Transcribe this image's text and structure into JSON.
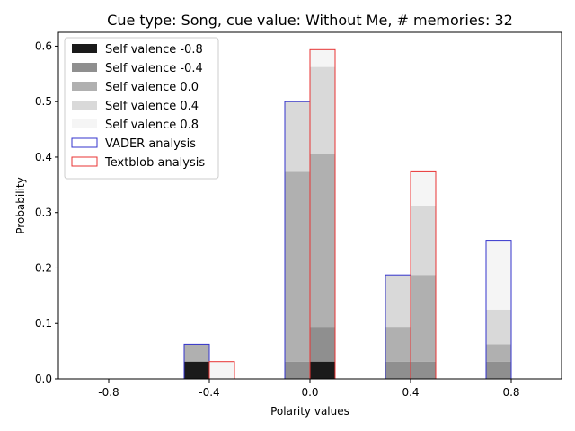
{
  "chart_data": {
    "type": "bar",
    "title": "Cue type: Song, cue value: Without Me, # memories: 32",
    "xlabel": "Polarity values",
    "ylabel": "Probability",
    "x_ticks": [
      "-0.8",
      "-0.4",
      "0.0",
      "0.4",
      "0.8"
    ],
    "y_ticks": [
      "0.0",
      "0.1",
      "0.2",
      "0.3",
      "0.4",
      "0.5",
      "0.6"
    ],
    "ylim": [
      0,
      0.625
    ],
    "xlim": [
      -1.0,
      1.0
    ],
    "categories": [
      -0.8,
      -0.4,
      0.0,
      0.4,
      0.8
    ],
    "bin_width": 0.1,
    "legend_position": "top-left",
    "grid": false,
    "series": [
      {
        "name": "VADER analysis",
        "offset": -0.05,
        "edge_color": "#3333cc",
        "stacks": [
          {
            "name": "Self valence -0.8",
            "color": "#1a1a1a",
            "values": [
              0,
              0.03125,
              0,
              0,
              0
            ]
          },
          {
            "name": "Self valence -0.4",
            "color": "#8f8f8f",
            "values": [
              0,
              0,
              0.03125,
              0.03125,
              0.03125
            ]
          },
          {
            "name": "Self valence 0.0",
            "color": "#b0b0b0",
            "values": [
              0,
              0.03125,
              0.34375,
              0.0625,
              0.03125
            ]
          },
          {
            "name": "Self valence 0.4",
            "color": "#d9d9d9",
            "values": [
              0,
              0,
              0.125,
              0.09375,
              0.0625
            ]
          },
          {
            "name": "Self valence 0.8",
            "color": "#f5f5f5",
            "values": [
              0,
              0,
              0,
              0,
              0.125
            ]
          }
        ]
      },
      {
        "name": "Textblob analysis",
        "offset": 0.05,
        "edge_color": "#e83333",
        "stacks": [
          {
            "name": "Self valence -0.8",
            "color": "#1a1a1a",
            "values": [
              0,
              0,
              0.03125,
              0,
              0
            ]
          },
          {
            "name": "Self valence -0.4",
            "color": "#8f8f8f",
            "values": [
              0,
              0,
              0.0625,
              0.03125,
              0
            ]
          },
          {
            "name": "Self valence 0.0",
            "color": "#b0b0b0",
            "values": [
              0,
              0,
              0.3125,
              0.15625,
              0
            ]
          },
          {
            "name": "Self valence 0.4",
            "color": "#d9d9d9",
            "values": [
              0,
              0,
              0.15625,
              0.125,
              0
            ]
          },
          {
            "name": "Self valence 0.8",
            "color": "#f5f5f5",
            "values": [
              0,
              0.03125,
              0.03125,
              0.0625,
              0
            ]
          }
        ]
      }
    ]
  },
  "legend": {
    "items": [
      {
        "label": "Self valence -0.8",
        "fill": "#1a1a1a",
        "stroke": "none"
      },
      {
        "label": "Self valence -0.4",
        "fill": "#8f8f8f",
        "stroke": "none"
      },
      {
        "label": "Self valence 0.0",
        "fill": "#b0b0b0",
        "stroke": "none"
      },
      {
        "label": "Self valence 0.4",
        "fill": "#d9d9d9",
        "stroke": "none"
      },
      {
        "label": "Self valence 0.8",
        "fill": "#f5f5f5",
        "stroke": "none"
      },
      {
        "label": "VADER analysis",
        "fill": "#ffffff",
        "stroke": "#3333cc"
      },
      {
        "label": "Textblob analysis",
        "fill": "#ffffff",
        "stroke": "#e83333"
      }
    ]
  }
}
